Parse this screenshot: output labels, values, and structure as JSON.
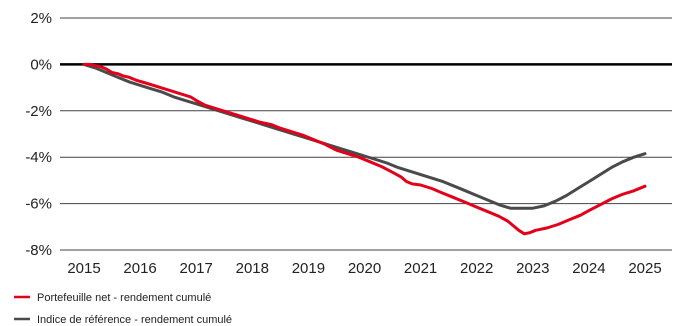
{
  "chart_data": {
    "type": "line",
    "title": "",
    "xlabel": "",
    "ylabel": "",
    "xlim": [
      2015,
      2025
    ],
    "ylim": [
      -8,
      2
    ],
    "x_ticks": [
      "2015",
      "2016",
      "2017",
      "2018",
      "2019",
      "2020",
      "2021",
      "2022",
      "2023",
      "2024",
      "2025"
    ],
    "y_ticks": [
      "2%",
      "0%",
      "-2%",
      "-4%",
      "-6%",
      "-8%"
    ],
    "grid": "horizontal",
    "zero_line": true,
    "legend_position": "bottom-left",
    "series": [
      {
        "name": "Portefeuille net - rendement cumulé",
        "color": "#e2001a",
        "points": [
          [
            2015.0,
            0.0
          ],
          [
            2015.1,
            0.0
          ],
          [
            2015.2,
            -0.05
          ],
          [
            2015.3,
            -0.1
          ],
          [
            2015.4,
            -0.2
          ],
          [
            2015.5,
            -0.35
          ],
          [
            2015.6,
            -0.4
          ],
          [
            2015.7,
            -0.5
          ],
          [
            2015.8,
            -0.55
          ],
          [
            2015.95,
            -0.7
          ],
          [
            2016.1,
            -0.8
          ],
          [
            2016.3,
            -0.95
          ],
          [
            2016.5,
            -1.1
          ],
          [
            2016.7,
            -1.25
          ],
          [
            2016.9,
            -1.4
          ],
          [
            2017.0,
            -1.55
          ],
          [
            2017.15,
            -1.75
          ],
          [
            2017.35,
            -1.9
          ],
          [
            2017.55,
            -2.05
          ],
          [
            2017.75,
            -2.2
          ],
          [
            2017.95,
            -2.35
          ],
          [
            2018.15,
            -2.5
          ],
          [
            2018.35,
            -2.6
          ],
          [
            2018.5,
            -2.75
          ],
          [
            2018.7,
            -2.9
          ],
          [
            2018.9,
            -3.05
          ],
          [
            2019.1,
            -3.25
          ],
          [
            2019.3,
            -3.45
          ],
          [
            2019.5,
            -3.7
          ],
          [
            2019.7,
            -3.85
          ],
          [
            2019.9,
            -4.0
          ],
          [
            2020.1,
            -4.2
          ],
          [
            2020.3,
            -4.4
          ],
          [
            2020.5,
            -4.65
          ],
          [
            2020.65,
            -4.85
          ],
          [
            2020.75,
            -5.05
          ],
          [
            2020.85,
            -5.15
          ],
          [
            2021.0,
            -5.2
          ],
          [
            2021.2,
            -5.35
          ],
          [
            2021.4,
            -5.55
          ],
          [
            2021.6,
            -5.75
          ],
          [
            2021.8,
            -5.95
          ],
          [
            2022.0,
            -6.15
          ],
          [
            2022.2,
            -6.35
          ],
          [
            2022.4,
            -6.55
          ],
          [
            2022.55,
            -6.75
          ],
          [
            2022.65,
            -6.95
          ],
          [
            2022.75,
            -7.15
          ],
          [
            2022.85,
            -7.3
          ],
          [
            2022.95,
            -7.25
          ],
          [
            2023.05,
            -7.15
          ],
          [
            2023.25,
            -7.05
          ],
          [
            2023.45,
            -6.9
          ],
          [
            2023.65,
            -6.7
          ],
          [
            2023.85,
            -6.5
          ],
          [
            2024.0,
            -6.3
          ],
          [
            2024.2,
            -6.05
          ],
          [
            2024.4,
            -5.8
          ],
          [
            2024.6,
            -5.6
          ],
          [
            2024.8,
            -5.45
          ],
          [
            2025.0,
            -5.25
          ]
        ]
      },
      {
        "name": "Indice de référence - rendement cumulé",
        "color": "#4a4a4a",
        "points": [
          [
            2015.0,
            0.0
          ],
          [
            2015.2,
            -0.15
          ],
          [
            2015.4,
            -0.35
          ],
          [
            2015.6,
            -0.55
          ],
          [
            2015.8,
            -0.75
          ],
          [
            2016.0,
            -0.9
          ],
          [
            2016.2,
            -1.05
          ],
          [
            2016.4,
            -1.2
          ],
          [
            2016.6,
            -1.4
          ],
          [
            2016.8,
            -1.55
          ],
          [
            2017.0,
            -1.7
          ],
          [
            2017.2,
            -1.85
          ],
          [
            2017.4,
            -2.0
          ],
          [
            2017.6,
            -2.15
          ],
          [
            2017.8,
            -2.3
          ],
          [
            2018.0,
            -2.45
          ],
          [
            2018.2,
            -2.6
          ],
          [
            2018.4,
            -2.75
          ],
          [
            2018.6,
            -2.9
          ],
          [
            2018.8,
            -3.05
          ],
          [
            2019.0,
            -3.2
          ],
          [
            2019.2,
            -3.35
          ],
          [
            2019.4,
            -3.5
          ],
          [
            2019.6,
            -3.65
          ],
          [
            2019.8,
            -3.8
          ],
          [
            2020.0,
            -3.95
          ],
          [
            2020.2,
            -4.1
          ],
          [
            2020.4,
            -4.25
          ],
          [
            2020.6,
            -4.45
          ],
          [
            2020.8,
            -4.6
          ],
          [
            2021.0,
            -4.75
          ],
          [
            2021.2,
            -4.9
          ],
          [
            2021.4,
            -5.05
          ],
          [
            2021.6,
            -5.25
          ],
          [
            2021.8,
            -5.45
          ],
          [
            2022.0,
            -5.65
          ],
          [
            2022.2,
            -5.85
          ],
          [
            2022.4,
            -6.05
          ],
          [
            2022.6,
            -6.2
          ],
          [
            2022.8,
            -6.2
          ],
          [
            2023.0,
            -6.2
          ],
          [
            2023.2,
            -6.1
          ],
          [
            2023.4,
            -5.9
          ],
          [
            2023.6,
            -5.65
          ],
          [
            2023.8,
            -5.35
          ],
          [
            2024.0,
            -5.05
          ],
          [
            2024.2,
            -4.75
          ],
          [
            2024.4,
            -4.45
          ],
          [
            2024.6,
            -4.2
          ],
          [
            2024.8,
            -4.0
          ],
          [
            2025.0,
            -3.85
          ]
        ]
      }
    ]
  }
}
